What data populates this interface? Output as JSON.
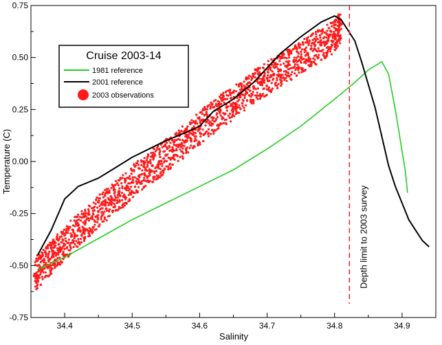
{
  "chart_data": {
    "type": "scatter",
    "xlabel": "Salinity",
    "ylabel": "Temperature (C)",
    "xlim": [
      34.35,
      34.95
    ],
    "ylim": [
      -0.75,
      0.75
    ],
    "x_ticks": [
      34.4,
      34.5,
      34.6,
      34.7,
      34.8,
      34.9
    ],
    "x_tick_labels": [
      "34.4",
      "34.5",
      "34.6",
      "34.7",
      "34.8",
      "34.9"
    ],
    "y_ticks": [
      -0.75,
      -0.5,
      -0.25,
      0.0,
      0.25,
      0.5,
      0.75
    ],
    "y_tick_labels": [
      "-0.75",
      "-0.50",
      "-0.25",
      "0.00",
      "0.25",
      "0.50",
      "0.75"
    ],
    "grid": false,
    "legend": {
      "title": "Cruise 2003-14",
      "placement": "top-left",
      "entries": [
        "1981 reference",
        "2001 reference",
        "2003 observations"
      ]
    },
    "annotation": {
      "text": "Depth limit to 2003 survey",
      "x": 34.822
    },
    "series": [
      {
        "name": "1981 reference",
        "color": "#22cc22",
        "style": "line",
        "x": [
          34.36,
          34.4,
          34.45,
          34.5,
          34.55,
          34.6,
          34.65,
          34.7,
          34.75,
          34.8,
          34.83,
          34.85,
          34.87,
          34.88,
          34.89,
          34.9,
          34.905,
          34.908
        ],
        "y": [
          -0.52,
          -0.46,
          -0.37,
          -0.28,
          -0.2,
          -0.12,
          -0.04,
          0.06,
          0.17,
          0.3,
          0.38,
          0.44,
          0.48,
          0.42,
          0.25,
          0.05,
          -0.05,
          -0.15
        ]
      },
      {
        "name": "2001 reference",
        "color": "#000000",
        "style": "line",
        "x": [
          34.36,
          34.38,
          34.4,
          34.42,
          34.45,
          34.48,
          34.5,
          34.55,
          34.58,
          34.6,
          34.62,
          34.65,
          34.68,
          34.7,
          34.72,
          34.75,
          34.78,
          34.8,
          34.81,
          34.82,
          34.83,
          34.84,
          34.85,
          34.86,
          34.87,
          34.88,
          34.89,
          34.9,
          34.91,
          34.92,
          34.93,
          34.94
        ],
        "y": [
          -0.45,
          -0.33,
          -0.18,
          -0.12,
          -0.08,
          -0.02,
          0.02,
          0.1,
          0.14,
          0.17,
          0.24,
          0.3,
          0.38,
          0.45,
          0.52,
          0.6,
          0.67,
          0.7,
          0.68,
          0.63,
          0.58,
          0.48,
          0.37,
          0.26,
          0.12,
          -0.02,
          -0.12,
          -0.2,
          -0.28,
          -0.33,
          -0.38,
          -0.41
        ]
      },
      {
        "name": "2003 observations",
        "color": "#ff1a1a",
        "style": "scatter",
        "x": [
          34.355,
          34.362,
          34.37,
          34.378,
          34.385,
          34.392,
          34.4,
          34.41,
          34.42,
          34.43,
          34.44,
          34.45,
          34.46,
          34.47,
          34.48,
          34.49,
          34.5,
          34.51,
          34.52,
          34.53,
          34.54,
          34.55,
          34.56,
          34.57,
          34.58,
          34.59,
          34.6,
          34.61,
          34.62,
          34.63,
          34.64,
          34.65,
          34.66,
          34.67,
          34.68,
          34.69,
          34.7,
          34.71,
          34.72,
          34.73,
          34.74,
          34.75,
          34.76,
          34.77,
          34.78,
          34.79,
          34.8,
          34.805,
          34.81
        ],
        "y": [
          -0.55,
          -0.52,
          -0.5,
          -0.47,
          -0.44,
          -0.42,
          -0.4,
          -0.36,
          -0.33,
          -0.3,
          -0.27,
          -0.24,
          -0.21,
          -0.18,
          -0.16,
          -0.13,
          -0.1,
          -0.07,
          -0.04,
          -0.02,
          0.0,
          0.03,
          0.05,
          0.08,
          0.1,
          0.13,
          0.16,
          0.19,
          0.21,
          0.24,
          0.26,
          0.28,
          0.31,
          0.33,
          0.36,
          0.38,
          0.4,
          0.42,
          0.44,
          0.46,
          0.48,
          0.5,
          0.52,
          0.54,
          0.56,
          0.58,
          0.6,
          0.63,
          0.66
        ]
      }
    ]
  }
}
